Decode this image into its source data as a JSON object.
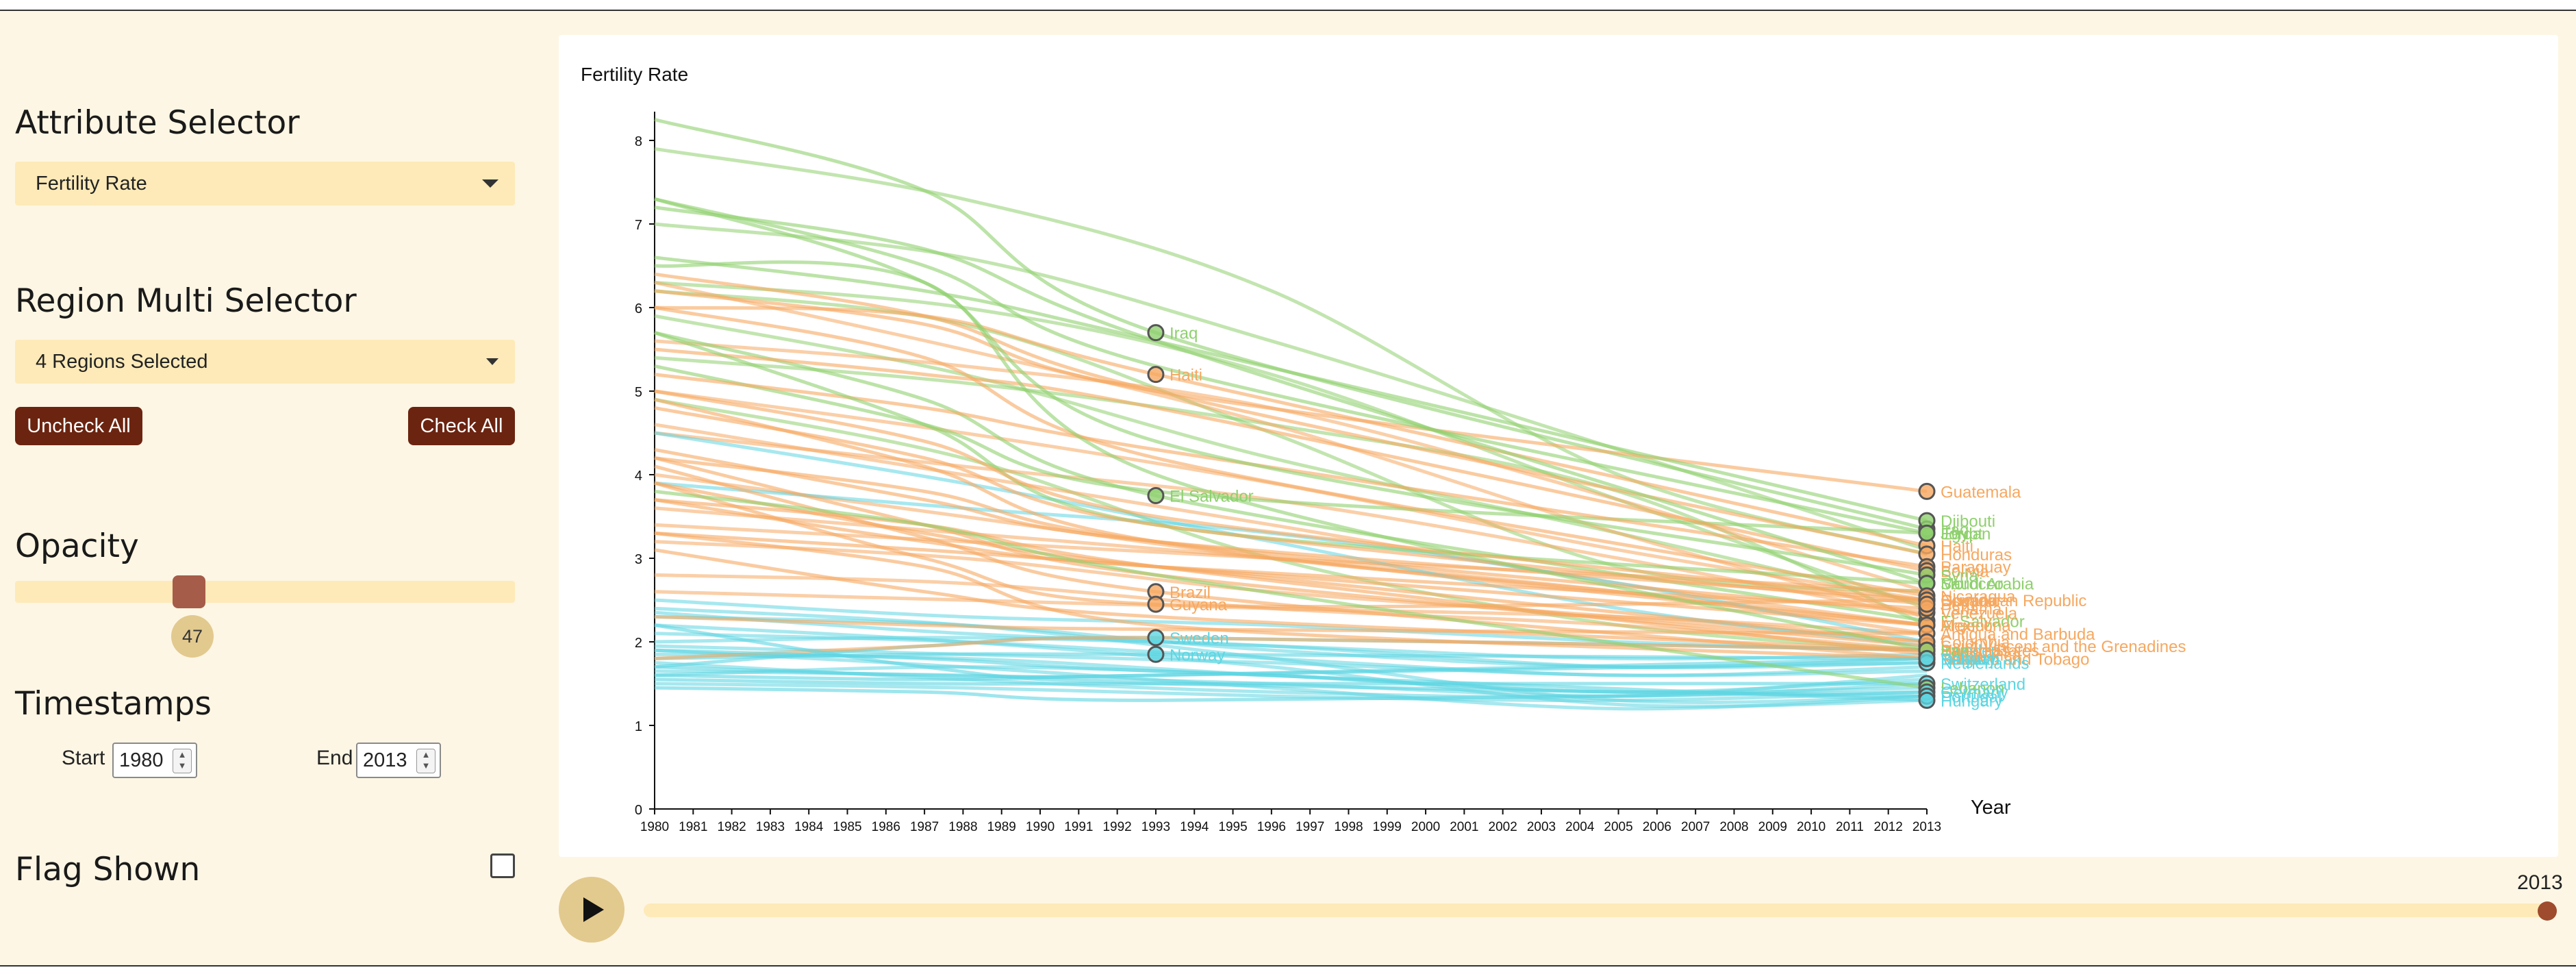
{
  "sidebar": {
    "attribute_title": "Attribute Selector",
    "attribute_value": "Fertility Rate",
    "region_title": "Region Multi Selector",
    "region_value": "4 Regions Selected",
    "uncheck_all": "Uncheck All",
    "check_all": "Check All",
    "opacity_title": "Opacity",
    "opacity_value": "47",
    "timestamps_title": "Timestamps",
    "start_label": "Start",
    "start_value": "1980",
    "end_label": "End",
    "end_value": "2013",
    "flag_title": "Flag Shown",
    "flag_checked": false
  },
  "timeline": {
    "value_label": "2013",
    "play_icon": "play-icon",
    "progress": 1.0
  },
  "colors": {
    "green": "#8fd06e",
    "orange": "#f6a860",
    "cyan": "#5ed6e2",
    "accent_dark": "#6b2410",
    "panel_bg": "#fef6e4",
    "control_bg": "#fdeab8"
  },
  "chart_data": {
    "type": "line",
    "ylabel": "Fertility Rate",
    "xlabel": "Year",
    "xlim": [
      1980,
      2013
    ],
    "ylim": [
      0,
      8.5
    ],
    "y_ticks": [
      0,
      1,
      2,
      3,
      4,
      5,
      6,
      7,
      8
    ],
    "x_ticks": [
      1980,
      1981,
      1982,
      1983,
      1984,
      1985,
      1986,
      1987,
      1988,
      1989,
      1990,
      1991,
      1992,
      1993,
      1994,
      1995,
      1996,
      1997,
      1998,
      1999,
      2000,
      2001,
      2002,
      2003,
      2004,
      2005,
      2006,
      2007,
      2008,
      2009,
      2010,
      2011,
      2012,
      2013
    ],
    "mid_year": 1993,
    "labeled_series": [
      {
        "name": "Iraq",
        "color": "green",
        "values": [
          8.25,
          7.4,
          5.7,
          3.35
        ]
      },
      {
        "name": "Haiti",
        "color": "orange",
        "values": [
          6.0,
          5.9,
          5.2,
          3.15
        ]
      },
      {
        "name": "El Salvador",
        "color": "green",
        "values": [
          5.7,
          4.9,
          3.75,
          2.25
        ]
      },
      {
        "name": "Brazil",
        "color": "orange",
        "values": [
          4.1,
          3.25,
          2.6,
          1.8
        ]
      },
      {
        "name": "Guyana",
        "color": "orange",
        "values": [
          3.9,
          3.0,
          2.45,
          2.5
        ]
      },
      {
        "name": "Sweden",
        "color": "cyan",
        "values": [
          1.7,
          1.95,
          2.05,
          1.9
        ]
      },
      {
        "name": "Norway",
        "color": "cyan",
        "values": [
          1.8,
          1.85,
          1.85,
          1.8
        ]
      },
      {
        "name": "Guatemala",
        "color": "orange",
        "values": [
          6.2,
          5.8,
          5.0,
          3.8
        ]
      },
      {
        "name": "Djibouti",
        "color": "green",
        "values": [
          6.6,
          6.2,
          5.6,
          3.45
        ]
      },
      {
        "name": "Egypt",
        "color": "green",
        "values": [
          5.3,
          4.6,
          3.8,
          3.3
        ]
      },
      {
        "name": "Jordan",
        "color": "green",
        "values": [
          7.3,
          6.5,
          5.3,
          3.3
        ]
      },
      {
        "name": "Honduras",
        "color": "orange",
        "values": [
          6.4,
          5.9,
          5.0,
          3.05
        ]
      },
      {
        "name": "Paraguay",
        "color": "orange",
        "values": [
          5.2,
          4.8,
          4.3,
          2.9
        ]
      },
      {
        "name": "Bolivia",
        "color": "orange",
        "values": [
          5.5,
          5.2,
          4.8,
          2.85
        ]
      },
      {
        "name": "Syria",
        "color": "green",
        "values": [
          7.3,
          6.3,
          4.4,
          2.8
        ]
      },
      {
        "name": "Saudi Arabia",
        "color": "green",
        "values": [
          7.2,
          6.7,
          5.6,
          2.7
        ]
      },
      {
        "name": "Morocco",
        "color": "green",
        "values": [
          5.7,
          4.6,
          3.4,
          2.7
        ]
      },
      {
        "name": "Dominican Republic",
        "color": "orange",
        "values": [
          4.3,
          3.7,
          3.2,
          2.5
        ]
      },
      {
        "name": "Nicaragua",
        "color": "orange",
        "values": [
          6.0,
          5.4,
          4.2,
          2.55
        ]
      },
      {
        "name": "Ecuador",
        "color": "orange",
        "values": [
          5.0,
          4.4,
          3.5,
          2.5
        ]
      },
      {
        "name": "Argentina",
        "color": "orange",
        "values": [
          3.3,
          3.1,
          2.9,
          2.2
        ]
      },
      {
        "name": "Venezuela",
        "color": "orange",
        "values": [
          4.2,
          3.8,
          3.2,
          2.35
        ]
      },
      {
        "name": "Panama",
        "color": "orange",
        "values": [
          3.7,
          3.2,
          2.9,
          2.4
        ]
      },
      {
        "name": "Peru",
        "color": "orange",
        "values": [
          4.8,
          4.2,
          3.4,
          2.45
        ]
      },
      {
        "name": "Mexico",
        "color": "orange",
        "values": [
          4.9,
          4.1,
          3.2,
          2.2
        ]
      },
      {
        "name": "Antigua and Barbuda",
        "color": "orange",
        "values": [
          2.3,
          2.2,
          2.15,
          2.1
        ]
      },
      {
        "name": "Saint Vincent and the Grenadines",
        "color": "orange",
        "values": [
          4.2,
          3.4,
          2.8,
          1.95
        ]
      },
      {
        "name": "Colombia",
        "color": "orange",
        "values": [
          3.9,
          3.3,
          2.9,
          2.0
        ]
      },
      {
        "name": "Costa Rica",
        "color": "orange",
        "values": [
          3.7,
          3.4,
          2.9,
          1.85
        ]
      },
      {
        "name": "United States",
        "color": "orange",
        "values": [
          1.8,
          1.95,
          2.05,
          1.9
        ]
      },
      {
        "name": "Trinidad and Tobago",
        "color": "orange",
        "values": [
          3.3,
          2.9,
          2.2,
          1.8
        ]
      },
      {
        "name": "Bahamas",
        "color": "orange",
        "values": [
          3.1,
          2.6,
          2.3,
          1.9
        ]
      },
      {
        "name": "Iran",
        "color": "green",
        "values": [
          6.5,
          6.3,
          4.0,
          1.9
        ]
      },
      {
        "name": "Netherlands",
        "color": "cyan",
        "values": [
          1.6,
          1.55,
          1.6,
          1.75
        ]
      },
      {
        "name": "Belgium",
        "color": "cyan",
        "values": [
          1.7,
          1.6,
          1.6,
          1.8
        ]
      },
      {
        "name": "Switzerland",
        "color": "cyan",
        "values": [
          1.55,
          1.5,
          1.5,
          1.5
        ]
      },
      {
        "name": "Lebanon",
        "color": "green",
        "values": [
          3.8,
          3.4,
          2.8,
          1.45
        ]
      },
      {
        "name": "Germany",
        "color": "cyan",
        "values": [
          1.45,
          1.4,
          1.3,
          1.4
        ]
      },
      {
        "name": "Portugal",
        "color": "cyan",
        "values": [
          2.2,
          1.7,
          1.5,
          1.35
        ]
      },
      {
        "name": "Hungary",
        "color": "cyan",
        "values": [
          1.9,
          1.8,
          1.65,
          1.3
        ]
      }
    ],
    "background_series": [
      {
        "color": "green",
        "values": [
          7.9,
          7.3,
          6.2,
          4.0,
          3.05
        ]
      },
      {
        "color": "green",
        "values": [
          7.0,
          6.6,
          5.6,
          4.3,
          3.1
        ]
      },
      {
        "color": "green",
        "values": [
          6.3,
          6.0,
          5.2,
          3.7,
          2.4
        ]
      },
      {
        "color": "green",
        "values": [
          5.9,
          5.2,
          4.2,
          3.3,
          2.45
        ]
      },
      {
        "color": "green",
        "values": [
          5.4,
          5.1,
          4.6,
          3.8,
          2.2
        ]
      },
      {
        "color": "green",
        "values": [
          4.9,
          4.2,
          3.0,
          2.2,
          1.9
        ]
      },
      {
        "color": "green",
        "values": [
          6.2,
          5.8,
          4.5,
          2.9,
          2.6
        ]
      },
      {
        "color": "orange",
        "values": [
          6.3,
          5.5,
          4.6,
          3.3,
          2.3
        ]
      },
      {
        "color": "orange",
        "values": [
          5.6,
          5.3,
          4.8,
          3.7,
          2.6
        ]
      },
      {
        "color": "orange",
        "values": [
          4.5,
          4.1,
          3.7,
          3.0,
          2.3
        ]
      },
      {
        "color": "orange",
        "values": [
          4.0,
          3.5,
          3.0,
          2.6,
          2.2
        ]
      },
      {
        "color": "orange",
        "values": [
          3.6,
          3.3,
          3.0,
          2.6,
          2.1
        ]
      },
      {
        "color": "orange",
        "values": [
          3.2,
          3.0,
          2.6,
          2.3,
          2.0
        ]
      },
      {
        "color": "orange",
        "values": [
          2.8,
          2.7,
          2.4,
          2.2,
          1.9
        ]
      },
      {
        "color": "orange",
        "values": [
          2.6,
          2.5,
          2.4,
          2.3,
          2.1
        ]
      },
      {
        "color": "orange",
        "values": [
          4.6,
          4.0,
          3.4,
          2.7,
          2.2
        ]
      },
      {
        "color": "orange",
        "values": [
          5.0,
          4.5,
          3.9,
          3.1,
          2.5
        ]
      },
      {
        "color": "orange",
        "values": [
          3.4,
          3.2,
          3.0,
          2.8,
          2.6
        ]
      },
      {
        "color": "cyan",
        "values": [
          4.5,
          3.9,
          3.2,
          2.4,
          1.95
        ]
      },
      {
        "color": "cyan",
        "values": [
          3.9,
          3.6,
          3.3,
          2.7,
          2.0
        ]
      },
      {
        "color": "cyan",
        "values": [
          2.5,
          2.3,
          2.2,
          2.0,
          1.9
        ]
      },
      {
        "color": "cyan",
        "values": [
          2.3,
          2.2,
          1.9,
          1.7,
          1.8
        ]
      },
      {
        "color": "cyan",
        "values": [
          2.1,
          2.0,
          1.8,
          1.6,
          1.7
        ]
      },
      {
        "color": "cyan",
        "values": [
          1.95,
          1.85,
          1.75,
          1.6,
          1.65
        ]
      },
      {
        "color": "cyan",
        "values": [
          1.85,
          1.8,
          1.6,
          1.4,
          1.45
        ]
      },
      {
        "color": "cyan",
        "values": [
          1.65,
          1.6,
          1.5,
          1.35,
          1.5
        ]
      },
      {
        "color": "cyan",
        "values": [
          1.5,
          1.45,
          1.35,
          1.3,
          1.4
        ]
      },
      {
        "color": "cyan",
        "values": [
          2.4,
          2.2,
          1.8,
          1.3,
          1.35
        ]
      },
      {
        "color": "cyan",
        "values": [
          2.2,
          2.0,
          1.7,
          1.25,
          1.3
        ]
      },
      {
        "color": "cyan",
        "values": [
          1.9,
          1.7,
          1.45,
          1.2,
          1.35
        ]
      },
      {
        "color": "cyan",
        "values": [
          1.75,
          1.55,
          1.4,
          1.35,
          1.6
        ]
      },
      {
        "color": "cyan",
        "values": [
          2.35,
          2.1,
          1.95,
          1.7,
          1.75
        ]
      },
      {
        "color": "cyan",
        "values": [
          2.0,
          2.05,
          1.95,
          1.8,
          1.85
        ]
      },
      {
        "color": "cyan",
        "values": [
          1.6,
          1.7,
          1.6,
          1.4,
          1.55
        ]
      }
    ],
    "background_x": [
      1980,
      1988,
      1996,
      2005,
      2013
    ],
    "labeled_x": [
      1980,
      1987,
      1993,
      2013
    ]
  }
}
